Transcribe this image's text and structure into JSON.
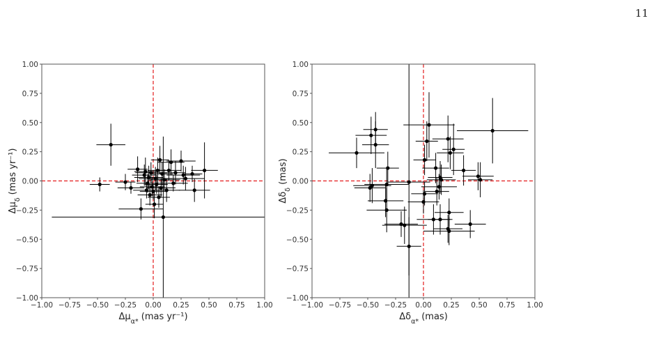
{
  "page": {
    "number": "11"
  },
  "chart_data": [
    {
      "type": "scatter",
      "xlabel": "Δμ_α* (mas yr⁻¹)",
      "ylabel": "Δμ_δ (mas yr⁻¹)",
      "xlim": [
        -1.0,
        1.0
      ],
      "ylim": [
        -1.0,
        1.0
      ],
      "xticks": [
        "−1.00",
        "−0.75",
        "−0.50",
        "−0.25",
        "0.00",
        "0.25",
        "0.50",
        "0.75",
        "1.00"
      ],
      "yticks": [
        "1.00",
        "0.75",
        "0.50",
        "0.25",
        "0.00",
        "−0.25",
        "−0.50",
        "−0.75",
        "−1.00"
      ],
      "reference_lines": {
        "x": 0,
        "y": 0,
        "color": "#e31a1c"
      },
      "marker_color": "#000000",
      "points": [
        {
          "x": -0.38,
          "y": 0.31,
          "xerr": 0.13,
          "yerr": 0.18
        },
        {
          "x": -0.48,
          "y": -0.03,
          "xerr": 0.09,
          "yerr": 0.06
        },
        {
          "x": -0.25,
          "y": -0.01,
          "xerr": 0.09,
          "yerr": 0.07
        },
        {
          "x": -0.2,
          "y": -0.06,
          "xerr": 0.12,
          "yerr": 0.05
        },
        {
          "x": -0.14,
          "y": 0.1,
          "xerr": 0.09,
          "yerr": 0.11
        },
        {
          "x": -0.11,
          "y": -0.24,
          "xerr": 0.2,
          "yerr": 0.09
        },
        {
          "x": -0.08,
          "y": 0.05,
          "xerr": 0.11,
          "yerr": 0.09
        },
        {
          "x": -0.07,
          "y": 0.08,
          "xerr": 0.1,
          "yerr": 0.12
        },
        {
          "x": -0.06,
          "y": -0.08,
          "xerr": 0.12,
          "yerr": 0.07
        },
        {
          "x": -0.05,
          "y": -0.02,
          "xerr": 0.1,
          "yerr": 0.08
        },
        {
          "x": -0.04,
          "y": 0.03,
          "xerr": 0.13,
          "yerr": 0.1
        },
        {
          "x": -0.03,
          "y": -0.12,
          "xerr": 0.11,
          "yerr": 0.09
        },
        {
          "x": -0.02,
          "y": 0.07,
          "xerr": 0.14,
          "yerr": 0.09
        },
        {
          "x": -0.01,
          "y": -0.05,
          "xerr": 0.11,
          "yerr": 0.08
        },
        {
          "x": 0.0,
          "y": -0.09,
          "xerr": 0.12,
          "yerr": 0.07
        },
        {
          "x": 0.01,
          "y": -0.2,
          "xerr": 0.08,
          "yerr": 0.12
        },
        {
          "x": 0.02,
          "y": 0.02,
          "xerr": 0.15,
          "yerr": 0.1
        },
        {
          "x": 0.03,
          "y": -0.03,
          "xerr": 0.1,
          "yerr": 0.08
        },
        {
          "x": 0.04,
          "y": 0.09,
          "xerr": 0.09,
          "yerr": 0.11
        },
        {
          "x": 0.05,
          "y": -0.14,
          "xerr": 0.1,
          "yerr": 0.09
        },
        {
          "x": 0.06,
          "y": 0.18,
          "xerr": 0.08,
          "yerr": 0.12
        },
        {
          "x": 0.07,
          "y": -0.06,
          "xerr": 0.13,
          "yerr": 0.08
        },
        {
          "x": 0.08,
          "y": 0.06,
          "xerr": 0.1,
          "yerr": 0.1
        },
        {
          "x": 0.09,
          "y": -0.31,
          "xerr": 1.0,
          "yerr": 0.69
        },
        {
          "x": 0.1,
          "y": 0.01,
          "xerr": 0.14,
          "yerr": 0.09
        },
        {
          "x": 0.12,
          "y": -0.08,
          "xerr": 0.12,
          "yerr": 0.1
        },
        {
          "x": 0.14,
          "y": 0.09,
          "xerr": 0.11,
          "yerr": 0.09
        },
        {
          "x": 0.16,
          "y": 0.16,
          "xerr": 0.12,
          "yerr": 0.11
        },
        {
          "x": 0.18,
          "y": -0.02,
          "xerr": 0.13,
          "yerr": 0.07
        },
        {
          "x": 0.2,
          "y": 0.07,
          "xerr": 0.09,
          "yerr": 0.1
        },
        {
          "x": 0.25,
          "y": 0.17,
          "xerr": 0.13,
          "yerr": 0.09
        },
        {
          "x": 0.27,
          "y": 0.05,
          "xerr": 0.15,
          "yerr": 0.08
        },
        {
          "x": 0.29,
          "y": 0.02,
          "xerr": 0.17,
          "yerr": 0.1
        },
        {
          "x": 0.35,
          "y": 0.06,
          "xerr": 0.09,
          "yerr": 0.07
        },
        {
          "x": 0.37,
          "y": -0.08,
          "xerr": 0.14,
          "yerr": 0.1
        },
        {
          "x": 0.46,
          "y": 0.09,
          "xerr": 0.12,
          "yerr": 0.24
        }
      ]
    },
    {
      "type": "scatter",
      "xlabel": "Δδ_α* (mas)",
      "ylabel": "Δδ_δ (mas)",
      "xlim": [
        -1.0,
        1.0
      ],
      "ylim": [
        -1.0,
        1.0
      ],
      "xticks": [
        "−1.00",
        "−0.75",
        "−0.50",
        "−0.25",
        "0.00",
        "0.25",
        "0.50",
        "0.75",
        "1.00"
      ],
      "yticks": [
        "1.00",
        "0.75",
        "0.50",
        "0.25",
        "0.00",
        "−0.25",
        "−0.50",
        "−0.75",
        "−1.00"
      ],
      "reference_lines": {
        "x": 0,
        "y": 0,
        "color": "#e31a1c"
      },
      "marker_color": "#000000",
      "points": [
        {
          "x": -0.6,
          "y": 0.24,
          "xerr": 0.25,
          "yerr": 0.13
        },
        {
          "x": -0.43,
          "y": 0.44,
          "xerr": 0.11,
          "yerr": 0.15
        },
        {
          "x": -0.47,
          "y": 0.39,
          "xerr": 0.14,
          "yerr": 0.16
        },
        {
          "x": -0.43,
          "y": 0.31,
          "xerr": 0.12,
          "yerr": 0.2
        },
        {
          "x": -0.48,
          "y": -0.06,
          "xerr": 0.14,
          "yerr": 0.12
        },
        {
          "x": -0.46,
          "y": -0.04,
          "xerr": 0.17,
          "yerr": 0.15
        },
        {
          "x": -0.33,
          "y": -0.03,
          "xerr": 0.2,
          "yerr": 0.15
        },
        {
          "x": -0.34,
          "y": -0.17,
          "xerr": 0.16,
          "yerr": 0.14
        },
        {
          "x": -0.33,
          "y": -0.25,
          "xerr": 0.18,
          "yerr": 0.19
        },
        {
          "x": -0.32,
          "y": 0.11,
          "xerr": 0.1,
          "yerr": 0.14
        },
        {
          "x": -0.2,
          "y": -0.37,
          "xerr": 0.15,
          "yerr": 0.11
        },
        {
          "x": -0.17,
          "y": -0.38,
          "xerr": 0.2,
          "yerr": 0.16
        },
        {
          "x": -0.13,
          "y": -0.56,
          "xerr": 0.11,
          "yerr": 0.25
        },
        {
          "x": -0.13,
          "y": -0.01,
          "xerr": 0.19,
          "yerr": 1.01
        },
        {
          "x": 0.0,
          "y": -0.18,
          "xerr": 0.14,
          "yerr": 0.1
        },
        {
          "x": 0.01,
          "y": -0.11,
          "xerr": 0.12,
          "yerr": 0.1
        },
        {
          "x": 0.01,
          "y": 0.18,
          "xerr": 0.1,
          "yerr": 0.13
        },
        {
          "x": 0.03,
          "y": 0.34,
          "xerr": 0.1,
          "yerr": 0.17
        },
        {
          "x": 0.05,
          "y": 0.48,
          "xerr": 0.23,
          "yerr": 0.28
        },
        {
          "x": 0.09,
          "y": -0.33,
          "xerr": 0.15,
          "yerr": 0.13
        },
        {
          "x": 0.11,
          "y": 0.11,
          "xerr": 0.12,
          "yerr": 0.13
        },
        {
          "x": 0.12,
          "y": -0.09,
          "xerr": 0.11,
          "yerr": 0.12
        },
        {
          "x": 0.14,
          "y": -0.05,
          "xerr": 0.16,
          "yerr": 0.11
        },
        {
          "x": 0.15,
          "y": 0.03,
          "xerr": 0.11,
          "yerr": 0.14
        },
        {
          "x": 0.16,
          "y": 0.01,
          "xerr": 0.13,
          "yerr": 0.13
        },
        {
          "x": 0.15,
          "y": -0.33,
          "xerr": 0.11,
          "yerr": 0.13
        },
        {
          "x": 0.22,
          "y": -0.41,
          "xerr": 0.13,
          "yerr": 0.12
        },
        {
          "x": 0.22,
          "y": 0.36,
          "xerr": 0.14,
          "yerr": 0.2
        },
        {
          "x": 0.24,
          "y": 0.24,
          "xerr": 0.12,
          "yerr": 0.14
        },
        {
          "x": 0.27,
          "y": 0.27,
          "xerr": 0.1,
          "yerr": 0.22
        },
        {
          "x": 0.23,
          "y": -0.27,
          "xerr": 0.13,
          "yerr": 0.12
        },
        {
          "x": 0.23,
          "y": -0.43,
          "xerr": 0.23,
          "yerr": 0.12
        },
        {
          "x": 0.36,
          "y": 0.09,
          "xerr": 0.11,
          "yerr": 0.13
        },
        {
          "x": 0.42,
          "y": -0.37,
          "xerr": 0.14,
          "yerr": 0.12
        },
        {
          "x": 0.49,
          "y": 0.04,
          "xerr": 0.14,
          "yerr": 0.12
        },
        {
          "x": 0.51,
          "y": 0.01,
          "xerr": 0.11,
          "yerr": 0.15
        },
        {
          "x": 0.62,
          "y": 0.43,
          "xerr": 0.32,
          "yerr": 0.28
        }
      ]
    }
  ]
}
